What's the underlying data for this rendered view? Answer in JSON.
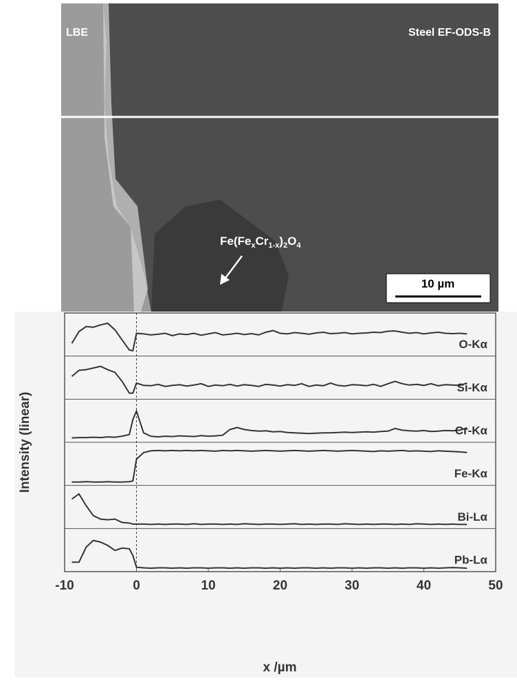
{
  "image": {
    "left_label": "LBE",
    "right_label": "Steel EF-ODS-B",
    "formula": [
      "Fe(Fe",
      "x",
      "Cr",
      "1-x",
      ")",
      "2",
      "O",
      "4"
    ],
    "scale_bar": "10 µm"
  },
  "chart_data": {
    "type": "line",
    "x_label": "x /µm",
    "y_label": "Intensity (linear)",
    "xlim": [
      -10,
      50
    ],
    "xticks": [
      -10,
      0,
      10,
      20,
      30,
      40,
      50
    ],
    "ylim": [
      0,
      1
    ],
    "marker_x": 0,
    "x": [
      -9,
      -8,
      -7,
      -6,
      -5,
      -4,
      -3,
      -2,
      -1,
      -0.5,
      0,
      1,
      2,
      3,
      4,
      5,
      6,
      7,
      8,
      9,
      10,
      11,
      12,
      13,
      14,
      15,
      16,
      17,
      18,
      19,
      20,
      21,
      22,
      23,
      24,
      25,
      26,
      27,
      28,
      29,
      30,
      31,
      32,
      33,
      34,
      35,
      36,
      37,
      38,
      39,
      40,
      41,
      42,
      43,
      44,
      45,
      46
    ],
    "series": [
      {
        "name": "O-Kα",
        "color": "#333333",
        "values": [
          0.3,
          0.65,
          0.8,
          0.78,
          0.85,
          0.9,
          0.7,
          0.4,
          0.1,
          0.08,
          0.6,
          0.58,
          0.55,
          0.57,
          0.6,
          0.53,
          0.58,
          0.56,
          0.6,
          0.54,
          0.58,
          0.62,
          0.55,
          0.57,
          0.6,
          0.56,
          0.59,
          0.55,
          0.63,
          0.68,
          0.6,
          0.58,
          0.62,
          0.6,
          0.57,
          0.61,
          0.63,
          0.59,
          0.6,
          0.62,
          0.58,
          0.6,
          0.61,
          0.63,
          0.62,
          0.66,
          0.67,
          0.63,
          0.6,
          0.62,
          0.58,
          0.61,
          0.63,
          0.6,
          0.59,
          0.6,
          0.58
        ]
      },
      {
        "name": "Si-Kα",
        "color": "#333333",
        "values": [
          0.6,
          0.78,
          0.8,
          0.85,
          0.9,
          0.8,
          0.72,
          0.45,
          0.1,
          0.1,
          0.4,
          0.33,
          0.32,
          0.36,
          0.3,
          0.33,
          0.35,
          0.31,
          0.34,
          0.38,
          0.3,
          0.34,
          0.32,
          0.36,
          0.31,
          0.35,
          0.33,
          0.3,
          0.36,
          0.34,
          0.31,
          0.35,
          0.33,
          0.38,
          0.3,
          0.34,
          0.32,
          0.4,
          0.33,
          0.31,
          0.35,
          0.34,
          0.32,
          0.36,
          0.3,
          0.38,
          0.45,
          0.38,
          0.34,
          0.36,
          0.33,
          0.38,
          0.32,
          0.35,
          0.34,
          0.33,
          0.4
        ]
      },
      {
        "name": "Cr-Kα",
        "color": "#333333",
        "values": [
          0.05,
          0.06,
          0.06,
          0.07,
          0.06,
          0.08,
          0.07,
          0.1,
          0.15,
          0.6,
          0.85,
          0.2,
          0.1,
          0.08,
          0.1,
          0.09,
          0.11,
          0.1,
          0.09,
          0.12,
          0.1,
          0.11,
          0.13,
          0.3,
          0.36,
          0.3,
          0.27,
          0.25,
          0.26,
          0.23,
          0.24,
          0.21,
          0.2,
          0.19,
          0.18,
          0.19,
          0.2,
          0.2,
          0.21,
          0.22,
          0.21,
          0.22,
          0.23,
          0.22,
          0.24,
          0.25,
          0.33,
          0.28,
          0.26,
          0.25,
          0.27,
          0.24,
          0.25,
          0.27,
          0.26,
          0.28,
          0.35
        ]
      },
      {
        "name": "Fe-Kα",
        "color": "#333333",
        "values": [
          0.02,
          0.02,
          0.03,
          0.02,
          0.02,
          0.03,
          0.02,
          0.02,
          0.03,
          0.05,
          0.7,
          0.9,
          0.95,
          0.96,
          0.95,
          0.96,
          0.95,
          0.96,
          0.95,
          0.96,
          0.95,
          0.94,
          0.96,
          0.95,
          0.96,
          0.95,
          0.94,
          0.95,
          0.96,
          0.95,
          0.94,
          0.95,
          0.96,
          0.95,
          0.94,
          0.95,
          0.96,
          0.95,
          0.94,
          0.95,
          0.96,
          0.95,
          0.94,
          0.93,
          0.95,
          0.94,
          0.95,
          0.96,
          0.94,
          0.95,
          0.94,
          0.93,
          0.95,
          0.94,
          0.93,
          0.92,
          0.9
        ]
      },
      {
        "name": "Bi-Lα",
        "color": "#333333",
        "values": [
          0.8,
          0.95,
          0.6,
          0.3,
          0.2,
          0.18,
          0.2,
          0.1,
          0.08,
          0.05,
          0.05,
          0.05,
          0.04,
          0.05,
          0.04,
          0.05,
          0.05,
          0.04,
          0.06,
          0.04,
          0.05,
          0.05,
          0.04,
          0.05,
          0.04,
          0.06,
          0.05,
          0.04,
          0.05,
          0.05,
          0.04,
          0.05,
          0.06,
          0.04,
          0.05,
          0.04,
          0.05,
          0.05,
          0.04,
          0.06,
          0.05,
          0.04,
          0.05,
          0.04,
          0.05,
          0.05,
          0.04,
          0.05,
          0.04,
          0.06,
          0.05,
          0.04,
          0.05,
          0.04,
          0.05,
          0.04,
          0.04
        ]
      },
      {
        "name": "Pb-Lα",
        "color": "#333333",
        "values": [
          0.2,
          0.2,
          0.65,
          0.85,
          0.8,
          0.7,
          0.55,
          0.62,
          0.6,
          0.4,
          0.05,
          0.03,
          0.02,
          0.03,
          0.03,
          0.02,
          0.03,
          0.02,
          0.03,
          0.03,
          0.02,
          0.03,
          0.03,
          0.02,
          0.03,
          0.02,
          0.03,
          0.03,
          0.02,
          0.03,
          0.02,
          0.03,
          0.02,
          0.03,
          0.03,
          0.02,
          0.03,
          0.02,
          0.03,
          0.03,
          0.02,
          0.03,
          0.02,
          0.03,
          0.03,
          0.02,
          0.03,
          0.02,
          0.03,
          0.03,
          0.02,
          0.03,
          0.02,
          0.03,
          0.04,
          0.03,
          0.02
        ]
      }
    ]
  }
}
